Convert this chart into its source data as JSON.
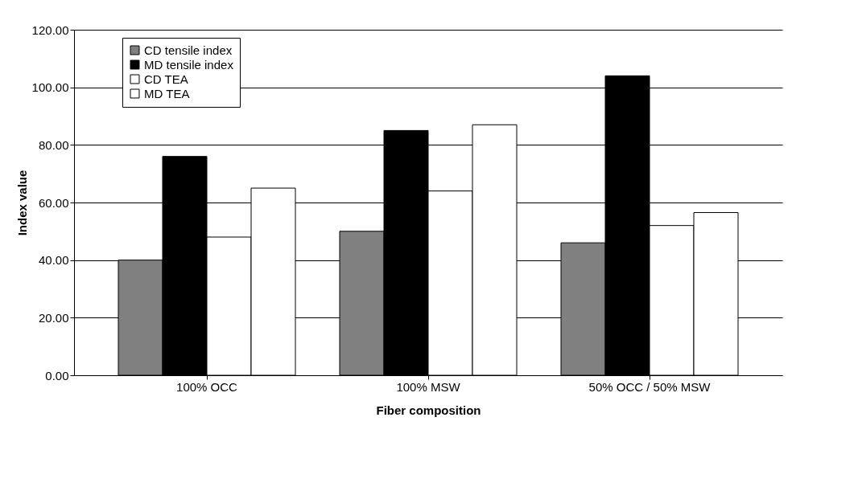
{
  "chart_data": {
    "type": "bar",
    "xlabel": "Fiber composition",
    "ylabel": "Index value",
    "categories": [
      "100% OCC",
      "100% MSW",
      "50% OCC / 50% MSW"
    ],
    "series": [
      {
        "name": "CD tensile index",
        "color": "#808080",
        "values": [
          40.0,
          50.0,
          46.0
        ]
      },
      {
        "name": "MD tensile index",
        "color": "#000000",
        "values": [
          76.0,
          85.0,
          104.0
        ]
      },
      {
        "name": "CD TEA",
        "color": "#ffffff",
        "values": [
          48.0,
          64.0,
          52.0
        ]
      },
      {
        "name": "MD TEA",
        "color": "#ffffff",
        "values": [
          65.0,
          87.0,
          56.5
        ]
      }
    ],
    "ylim": [
      0,
      120
    ],
    "yticks": [
      {
        "value": 0,
        "label": "0.00"
      },
      {
        "value": 20,
        "label": "20.00"
      },
      {
        "value": 40,
        "label": "40.00"
      },
      {
        "value": 60,
        "label": "60.00"
      },
      {
        "value": 80,
        "label": "80.00"
      },
      {
        "value": 100,
        "label": "100.00"
      },
      {
        "value": 120,
        "label": "120.00"
      }
    ],
    "grid": "y",
    "legend": "top left"
  }
}
